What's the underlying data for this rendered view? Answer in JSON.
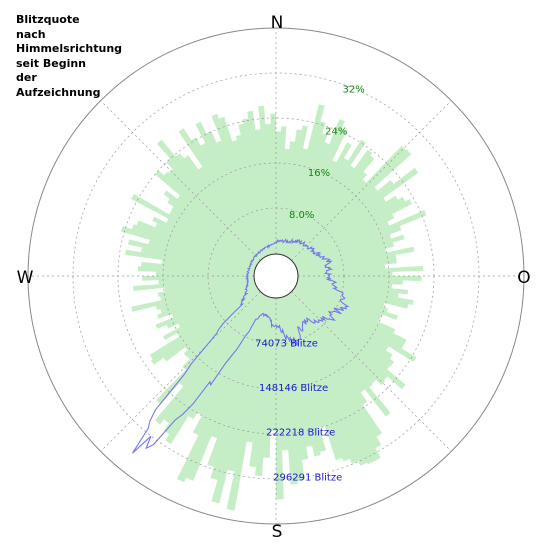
{
  "title_lines": [
    "Blitzquote",
    "nach",
    "Himmelsrichtung",
    "seit Beginn",
    "der",
    "Aufzeichnung"
  ],
  "directions": [
    "N",
    "O",
    "S",
    "W"
  ],
  "colors": {
    "rate_fill": "#c6eec6",
    "count_line": "#7777ee",
    "rate_tick": "#118811",
    "count_tick": "#1a1acc",
    "grid": "#999999"
  },
  "chart_data": {
    "type": "polar-area",
    "angle_start": "north",
    "angle_direction": "clockwise",
    "grid": true,
    "rate_axis": {
      "unit": "%",
      "max": 40,
      "ticks": [
        8,
        16,
        24,
        32
      ],
      "tick_labels": [
        "8.0%",
        "16%",
        "24%",
        "32%"
      ]
    },
    "count_axis": {
      "unit": "Blitze",
      "max": 370364,
      "ticks": [
        74073,
        148146,
        222218,
        296291
      ],
      "tick_labels": [
        "74073 Blitze",
        "148146 Blitze",
        "222218 Blitze",
        "296291 Blitze"
      ]
    },
    "series": [
      {
        "values_kind": "rate_percent",
        "bearings_deg": [
          0,
          15,
          30,
          45,
          60,
          75,
          90,
          105,
          120,
          135,
          150,
          165,
          180,
          195,
          210,
          225,
          240,
          255,
          270,
          285,
          300,
          315,
          330,
          345,
          360
        ],
        "values": [
          22,
          24,
          23,
          24,
          22,
          19,
          19,
          19,
          21,
          24,
          28,
          31,
          30,
          33,
          30,
          22,
          19,
          20,
          21,
          21,
          22,
          24,
          23,
          22,
          22
        ]
      },
      {
        "values_kind": "lightning_count",
        "bearings_deg": [
          0,
          10,
          20,
          30,
          45,
          60,
          75,
          90,
          100,
          110,
          120,
          135,
          145,
          155,
          165,
          175,
          180,
          190,
          200,
          205,
          210,
          215,
          218,
          220,
          225,
          230,
          240,
          255,
          270,
          285,
          300,
          315,
          330,
          345,
          360
        ],
        "values": [
          20000,
          22000,
          24000,
          30000,
          35000,
          40000,
          52000,
          48000,
          62000,
          85000,
          80000,
          70000,
          55000,
          58000,
          80000,
          52000,
          50000,
          35000,
          28000,
          45000,
          130000,
          270000,
          320000,
          320000,
          130000,
          40000,
          20000,
          12000,
          11000,
          10000,
          10000,
          11000,
          12000,
          14000,
          20000
        ]
      }
    ]
  }
}
